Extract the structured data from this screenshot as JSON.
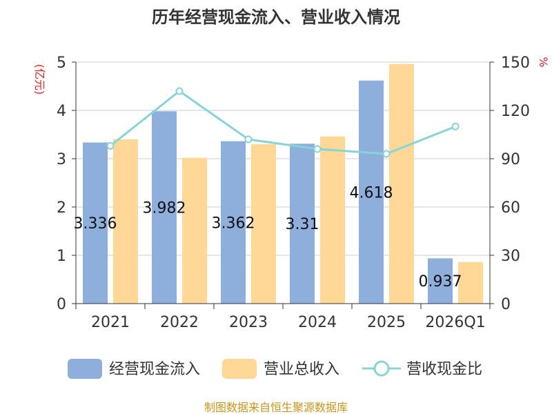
{
  "chart_data": {
    "type": "bar",
    "title": "历年经营现金流入、营业收入情况",
    "categories": [
      "2021",
      "2022",
      "2023",
      "2024",
      "2025",
      "2026Q1"
    ],
    "series": [
      {
        "name": "经营现金流入",
        "type": "bar",
        "axis": "left",
        "color": "#8eaedb",
        "values": [
          3.336,
          3.982,
          3.362,
          3.31,
          4.618,
          0.937
        ],
        "labels": [
          "3.336",
          "3.982",
          "3.362",
          "3.31",
          "4.618",
          "0.937"
        ]
      },
      {
        "name": "营业总收入",
        "type": "bar",
        "axis": "left",
        "color": "#ffd898",
        "values": [
          3.4,
          3.02,
          3.3,
          3.46,
          4.96,
          0.86
        ]
      },
      {
        "name": "营收现金比",
        "type": "line",
        "axis": "right",
        "color": "#88d4d4",
        "values": [
          98,
          132,
          102,
          96,
          93,
          110
        ]
      }
    ],
    "y_left": {
      "unit": "(亿元)",
      "ylim": [
        0,
        5
      ],
      "ticks": [
        "0",
        "1",
        "2",
        "3",
        "4",
        "5"
      ]
    },
    "y_right": {
      "unit": "%",
      "ylim": [
        0,
        150
      ],
      "ticks": [
        "0",
        "30",
        "60",
        "90",
        "120",
        "150"
      ]
    },
    "grid": true,
    "legend_position": "bottom"
  },
  "source": "制图数据来自恒生聚源数据库"
}
